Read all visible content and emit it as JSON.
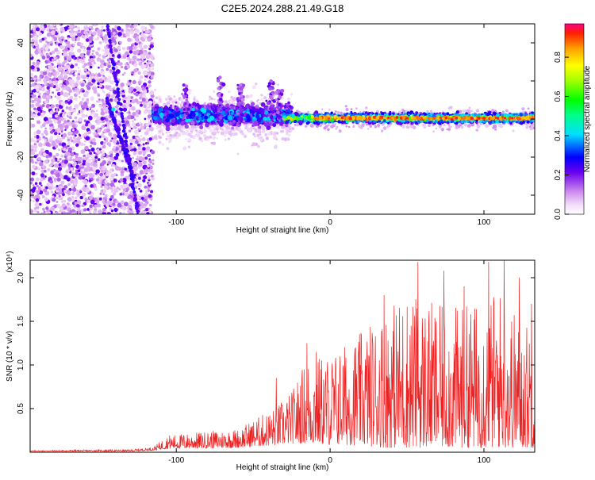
{
  "title": "C2E5.2024.288.21.49.G18",
  "chart_data": [
    {
      "type": "heatmap",
      "xlabel": "Height of straight line (km)",
      "ylabel": "Frequency (Hz)",
      "xlim": [
        -195,
        133
      ],
      "ylim": [
        -50,
        50
      ],
      "xticks": [
        -100,
        0,
        100
      ],
      "yticks": [
        -40,
        -20,
        0,
        20,
        40
      ],
      "grid": false,
      "colorbar": {
        "label": "Normalized spectral amplitude",
        "range": [
          0,
          0.97
        ],
        "ticks": [
          0.0,
          0.2,
          0.4,
          0.6,
          0.8
        ]
      },
      "regions": [
        {
          "x_range": [
            -195,
            -115
          ],
          "freq_spread": 50,
          "amplitude": "low, scattered"
        },
        {
          "x_range": [
            -115,
            -30
          ],
          "freq_spread": 10,
          "amplitude": "0.1-0.35"
        },
        {
          "x_range": [
            -30,
            133
          ],
          "freq_spread": 3,
          "amplitude": "0.3-0.9, peak near 0 Hz"
        }
      ],
      "tracks": [
        {
          "from": [
            -145,
            50
          ],
          "to": [
            -125,
            -50
          ]
        },
        {
          "from": [
            -145,
            10
          ],
          "to": [
            -128,
            -30
          ]
        }
      ]
    },
    {
      "type": "line",
      "xlabel": "Height of straight line (km)",
      "ylabel": "SNR (10 * v/v)",
      "y_multiplier": "(x10⁴)",
      "xlim": [
        -195,
        133
      ],
      "ylim": [
        0,
        2.2
      ],
      "xticks": [
        -100,
        0,
        100
      ],
      "yticks": [
        0.5,
        1.0,
        1.5,
        2.0
      ],
      "grid": false,
      "series": [
        {
          "color": "#ee2222",
          "envelope": [
            {
              "x": -195,
              "base": 0.01,
              "amp": 0.01
            },
            {
              "x": -150,
              "base": 0.01,
              "amp": 0.02
            },
            {
              "x": -130,
              "base": 0.01,
              "amp": 0.02
            },
            {
              "x": -115,
              "base": 0.02,
              "amp": 0.04
            },
            {
              "x": -105,
              "base": 0.04,
              "amp": 0.16
            },
            {
              "x": -60,
              "base": 0.05,
              "amp": 0.22
            },
            {
              "x": -35,
              "base": 0.08,
              "amp": 0.45
            },
            {
              "x": -25,
              "base": 0.1,
              "amp": 0.6
            },
            {
              "x": -15,
              "base": 0.1,
              "amp": 1.0
            },
            {
              "x": 0,
              "base": 0.08,
              "amp": 1.05
            },
            {
              "x": 20,
              "base": 0.08,
              "amp": 1.3
            },
            {
              "x": 35,
              "base": 0.05,
              "amp": 1.6
            },
            {
              "x": 50,
              "base": 0.05,
              "amp": 1.8
            },
            {
              "x": 75,
              "base": 0.05,
              "amp": 1.6
            },
            {
              "x": 100,
              "base": 0.05,
              "amp": 1.7
            },
            {
              "x": 110,
              "base": 0.05,
              "amp": 1.85
            },
            {
              "x": 125,
              "base": 0.05,
              "amp": 1.45
            },
            {
              "x": 133,
              "base": 0.05,
              "amp": 1.5
            }
          ],
          "peaks": [
            {
              "x": -35,
              "y": 0.85
            },
            {
              "x": -15,
              "y": 1.25
            },
            {
              "x": -9,
              "y": 1.15
            },
            {
              "x": 35,
              "y": 1.8
            },
            {
              "x": 57,
              "y": 2.18
            },
            {
              "x": 74,
              "y": 2.08
            },
            {
              "x": 87,
              "y": 1.9
            },
            {
              "x": 103,
              "y": 2.18
            },
            {
              "x": 113,
              "y": 2.2
            },
            {
              "x": 123,
              "y": 2.0
            },
            {
              "x": 131,
              "y": 1.7
            }
          ]
        }
      ]
    }
  ]
}
